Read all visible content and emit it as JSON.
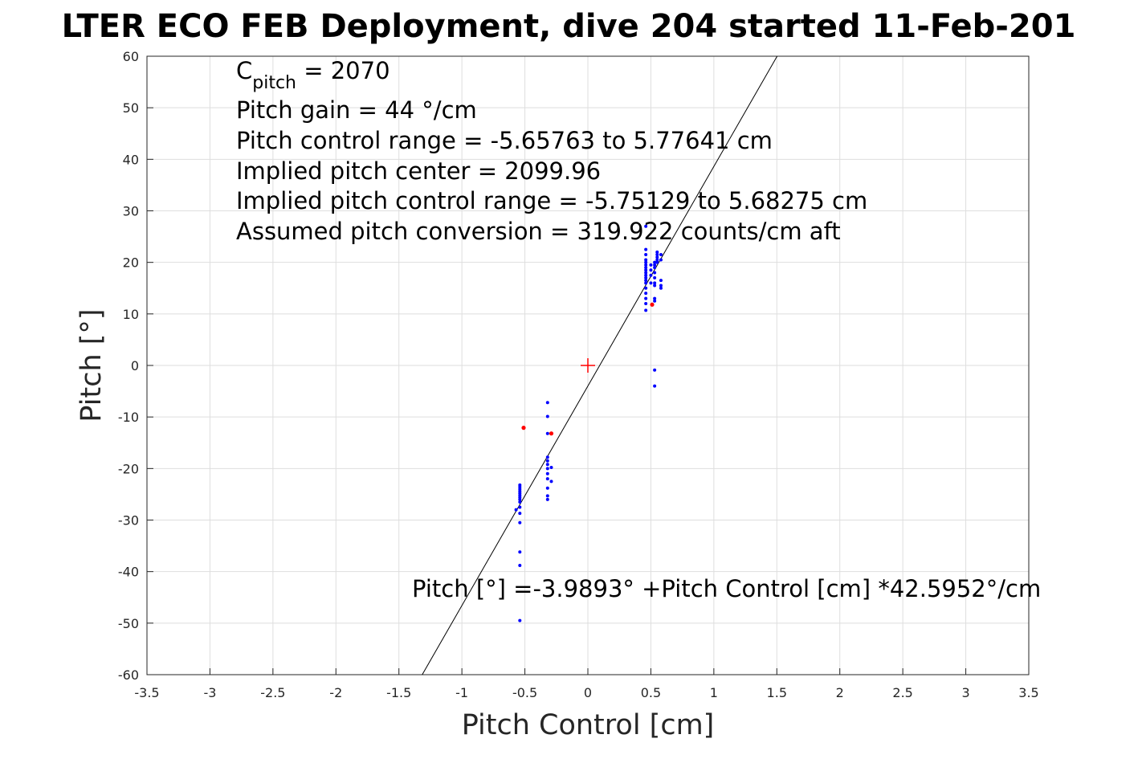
{
  "chart_data": {
    "type": "scatter",
    "title": "LTER ECO FEB Deployment, dive 204 started 11-Feb-201",
    "xlabel": "Pitch Control [cm]",
    "ylabel": "Pitch [°]",
    "xlim": [
      -3.5,
      3.5
    ],
    "ylim": [
      -60,
      60
    ],
    "grid": true,
    "xticks": [
      "-3.5",
      "-3",
      "-2.5",
      "-2",
      "-1.5",
      "-1",
      "-0.5",
      "0",
      "0.5",
      "1",
      "1.5",
      "2",
      "2.5",
      "3",
      "3.5"
    ],
    "yticks": [
      "60",
      "50",
      "40",
      "30",
      "20",
      "10",
      "0",
      "-10",
      "-20",
      "-30",
      "-40",
      "-50",
      "-60"
    ],
    "annotations": {
      "cpitch_label": "C",
      "cpitch_sub": "pitch",
      "cpitch_value": " = 2070",
      "lines": [
        "Pitch gain = 44 °/cm",
        "Pitch control range = -5.65763 to 5.77641 cm",
        "Implied pitch center = 2099.96",
        "Implied pitch control range = -5.75129 to 5.68275 cm",
        "Assumed pitch conversion = 319.922 counts/cm aft"
      ],
      "fit_equation": "Pitch [°] =-3.9893° +Pitch Control [cm] *42.5952°/cm"
    },
    "fit": {
      "intercept": -3.9893,
      "slope": 42.5952
    },
    "center_marker": [
      0,
      0
    ],
    "colors": {
      "good": "#0000ff",
      "outlier": "#ff0000",
      "fit": "#000000",
      "center": "#ff0000"
    },
    "series": [
      {
        "name": "good",
        "points": [
          [
            0.46,
            27
          ],
          [
            0.46,
            22.5
          ],
          [
            0.46,
            21.5
          ],
          [
            0.46,
            20.5
          ],
          [
            0.46,
            20
          ],
          [
            0.46,
            19.5
          ],
          [
            0.46,
            19
          ],
          [
            0.46,
            18.5
          ],
          [
            0.46,
            18
          ],
          [
            0.46,
            17.5
          ],
          [
            0.46,
            17
          ],
          [
            0.46,
            16.5
          ],
          [
            0.46,
            16
          ],
          [
            0.46,
            15
          ],
          [
            0.46,
            14
          ],
          [
            0.46,
            13
          ],
          [
            0.46,
            12
          ],
          [
            0.46,
            10.7
          ],
          [
            0.5,
            17.5
          ],
          [
            0.5,
            18.5
          ],
          [
            0.5,
            19.5
          ],
          [
            0.5,
            16
          ],
          [
            0.53,
            20
          ],
          [
            0.53,
            19.5
          ],
          [
            0.53,
            19
          ],
          [
            0.53,
            18
          ],
          [
            0.53,
            17
          ],
          [
            0.53,
            16
          ],
          [
            0.53,
            15.5
          ],
          [
            0.53,
            13
          ],
          [
            0.53,
            12.5
          ],
          [
            0.53,
            -0.9
          ],
          [
            0.53,
            -4
          ],
          [
            0.55,
            22
          ],
          [
            0.55,
            21.5
          ],
          [
            0.55,
            21
          ],
          [
            0.55,
            20.5
          ],
          [
            0.55,
            20
          ],
          [
            0.58,
            21.5
          ],
          [
            0.58,
            20.5
          ],
          [
            0.58,
            16.5
          ],
          [
            0.58,
            15.5
          ],
          [
            0.58,
            15
          ],
          [
            -0.54,
            -23.2
          ],
          [
            -0.54,
            -23.6
          ],
          [
            -0.54,
            -24
          ],
          [
            -0.54,
            -24.4
          ],
          [
            -0.54,
            -24.8
          ],
          [
            -0.54,
            -25.2
          ],
          [
            -0.54,
            -25.6
          ],
          [
            -0.54,
            -26
          ],
          [
            -0.54,
            -26.5
          ],
          [
            -0.54,
            -27.5
          ],
          [
            -0.54,
            -28.7
          ],
          [
            -0.54,
            -30.5
          ],
          [
            -0.54,
            -36.2
          ],
          [
            -0.54,
            -38.8
          ],
          [
            -0.54,
            -49.5
          ],
          [
            -0.57,
            -28
          ],
          [
            -0.32,
            -7.2
          ],
          [
            -0.32,
            -9.9
          ],
          [
            -0.32,
            -13.2
          ],
          [
            -0.32,
            -17.8
          ],
          [
            -0.32,
            -18.5
          ],
          [
            -0.32,
            -19.2
          ],
          [
            -0.32,
            -20
          ],
          [
            -0.32,
            -21
          ],
          [
            -0.32,
            -22
          ],
          [
            -0.32,
            -23.8
          ],
          [
            -0.32,
            -25.3
          ],
          [
            -0.32,
            -26
          ],
          [
            -0.29,
            -19.8
          ],
          [
            -0.29,
            -22.5
          ]
        ]
      },
      {
        "name": "outlier",
        "points": [
          [
            0.51,
            11.8
          ],
          [
            -0.51,
            -12.1
          ],
          [
            -0.29,
            -13.2
          ]
        ]
      }
    ]
  }
}
